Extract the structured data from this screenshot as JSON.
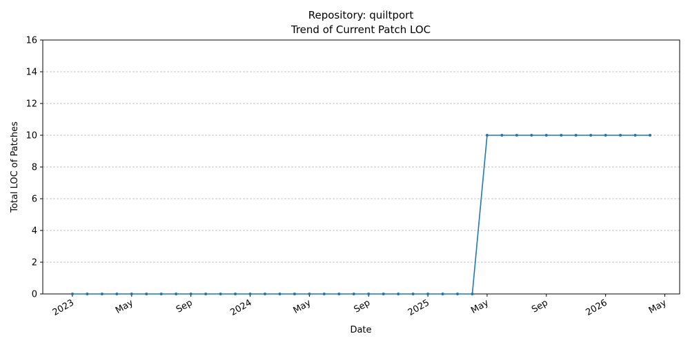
{
  "chart_data": {
    "type": "line",
    "title": "Repository: quiltport",
    "subtitle": "Trend of Current Patch LOC",
    "x_label": "Date",
    "y_label": "Total LOC of Patches",
    "x": [
      "2023-01",
      "2023-02",
      "2023-03",
      "2023-04",
      "2023-05",
      "2023-06",
      "2023-07",
      "2023-08",
      "2023-09",
      "2023-10",
      "2023-11",
      "2023-12",
      "2024-01",
      "2024-02",
      "2024-03",
      "2024-04",
      "2024-05",
      "2024-06",
      "2024-07",
      "2024-08",
      "2024-09",
      "2024-10",
      "2024-11",
      "2024-12",
      "2025-01",
      "2025-02",
      "2025-03",
      "2025-04",
      "2025-05",
      "2025-06",
      "2025-07",
      "2025-08",
      "2025-09",
      "2025-10",
      "2025-11",
      "2025-12",
      "2026-01",
      "2026-02",
      "2026-03",
      "2026-04"
    ],
    "series": [
      {
        "name": "Total LOC",
        "color": "#1f77b4",
        "values": [
          0,
          0,
          0,
          0,
          0,
          0,
          0,
          0,
          0,
          0,
          0,
          0,
          0,
          0,
          0,
          0,
          0,
          0,
          0,
          0,
          0,
          0,
          0,
          0,
          0,
          0,
          0,
          0,
          10,
          10,
          10,
          10,
          10,
          10,
          10,
          10,
          10,
          10,
          10,
          10
        ]
      }
    ],
    "xlim": [
      "2022-11",
      "2026-06"
    ],
    "xticks": [
      {
        "value": "2023-01",
        "label": "2023"
      },
      {
        "value": "2023-05",
        "label": "May"
      },
      {
        "value": "2023-09",
        "label": "Sep"
      },
      {
        "value": "2024-01",
        "label": "2024"
      },
      {
        "value": "2024-05",
        "label": "May"
      },
      {
        "value": "2024-09",
        "label": "Sep"
      },
      {
        "value": "2025-01",
        "label": "2025"
      },
      {
        "value": "2025-05",
        "label": "May"
      },
      {
        "value": "2025-09",
        "label": "Sep"
      },
      {
        "value": "2026-01",
        "label": "2026"
      },
      {
        "value": "2026-05",
        "label": "May"
      }
    ],
    "ylim": [
      0,
      16
    ],
    "yticks": [
      0,
      2,
      4,
      6,
      8,
      10,
      12,
      14,
      16
    ],
    "grid": true
  }
}
